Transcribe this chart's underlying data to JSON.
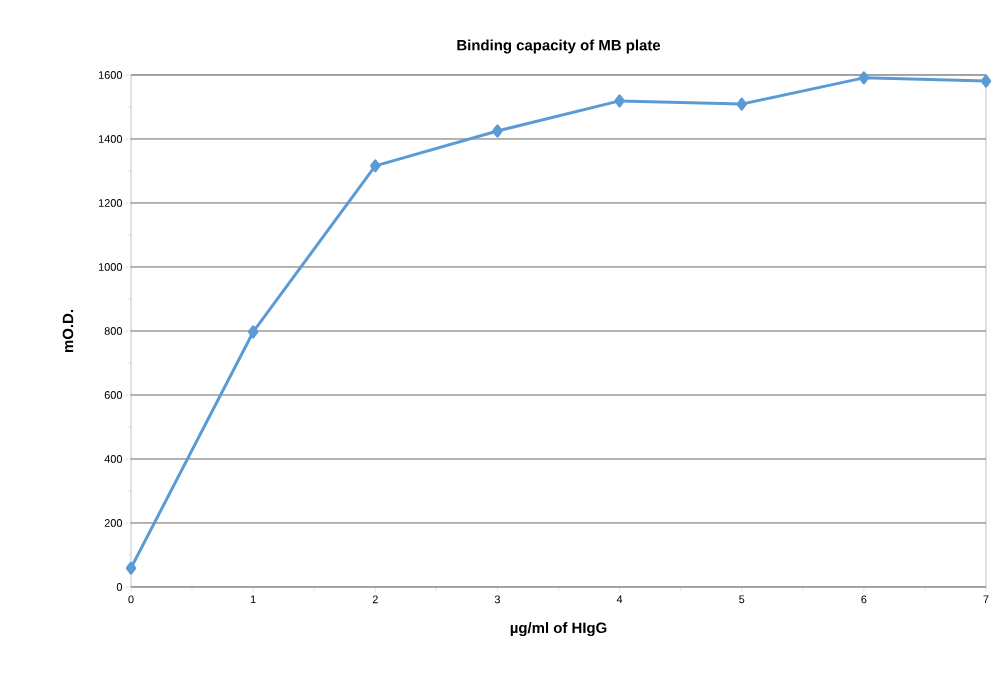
{
  "chart_data": {
    "type": "line",
    "title": "Binding capacity of MB plate",
    "xlabel": "µg/ml of HIgG",
    "ylabel": "mO.D.",
    "x": [
      0,
      1,
      2,
      3,
      4,
      5,
      6,
      7
    ],
    "series": [
      {
        "color": "#5b9bd5",
        "values": [
          59,
          797,
          1316,
          1425,
          1519,
          1509,
          1591,
          1581
        ]
      }
    ],
    "xlim": [
      0,
      7
    ],
    "xticks": [
      0,
      1,
      2,
      3,
      4,
      5,
      6,
      7
    ],
    "ylim": [
      0,
      1600
    ],
    "yticks": [
      0,
      200,
      400,
      600,
      800,
      1000,
      1200,
      1400,
      1600
    ],
    "grid": "y",
    "marker": "diamond",
    "line_style": "solid"
  }
}
